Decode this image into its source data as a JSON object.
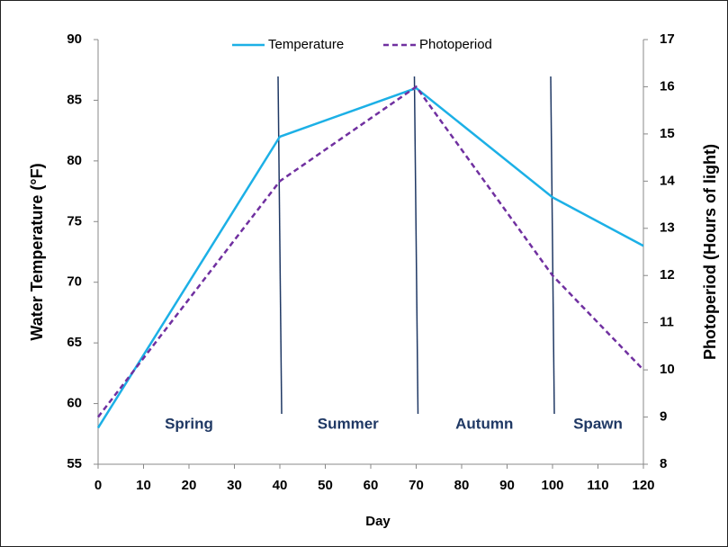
{
  "chart_data": {
    "type": "line",
    "x_label": "Day",
    "y_label": "Water Temperature (°F)",
    "y2_label": "Photoperiod (Hours of light)",
    "x": [
      0,
      40,
      70,
      100,
      120
    ],
    "series": [
      {
        "name": "Temperature",
        "color": "#1cb0e6",
        "values": [
          58,
          82,
          86,
          77,
          73
        ]
      },
      {
        "name": "Photoperiod",
        "color": "#7030a0",
        "dashed": true,
        "axis": "y2",
        "values": [
          9,
          14,
          16,
          12,
          10
        ]
      }
    ],
    "xlim": [
      0,
      120
    ],
    "xticks": [
      0,
      10,
      20,
      30,
      40,
      50,
      60,
      70,
      80,
      90,
      100,
      110,
      120
    ],
    "ylim": [
      55,
      90
    ],
    "yticks": [
      55,
      60,
      65,
      70,
      75,
      80,
      85,
      90
    ],
    "y2lim": [
      8,
      17
    ],
    "y2ticks": [
      8,
      9,
      10,
      11,
      12,
      13,
      14,
      15,
      16,
      17
    ],
    "dividers": [
      40,
      70,
      100
    ],
    "divider_color": "#1f3864",
    "annotations": [
      "Spring",
      "Summer",
      "Autumn",
      "Spawn"
    ],
    "legend": "top"
  }
}
